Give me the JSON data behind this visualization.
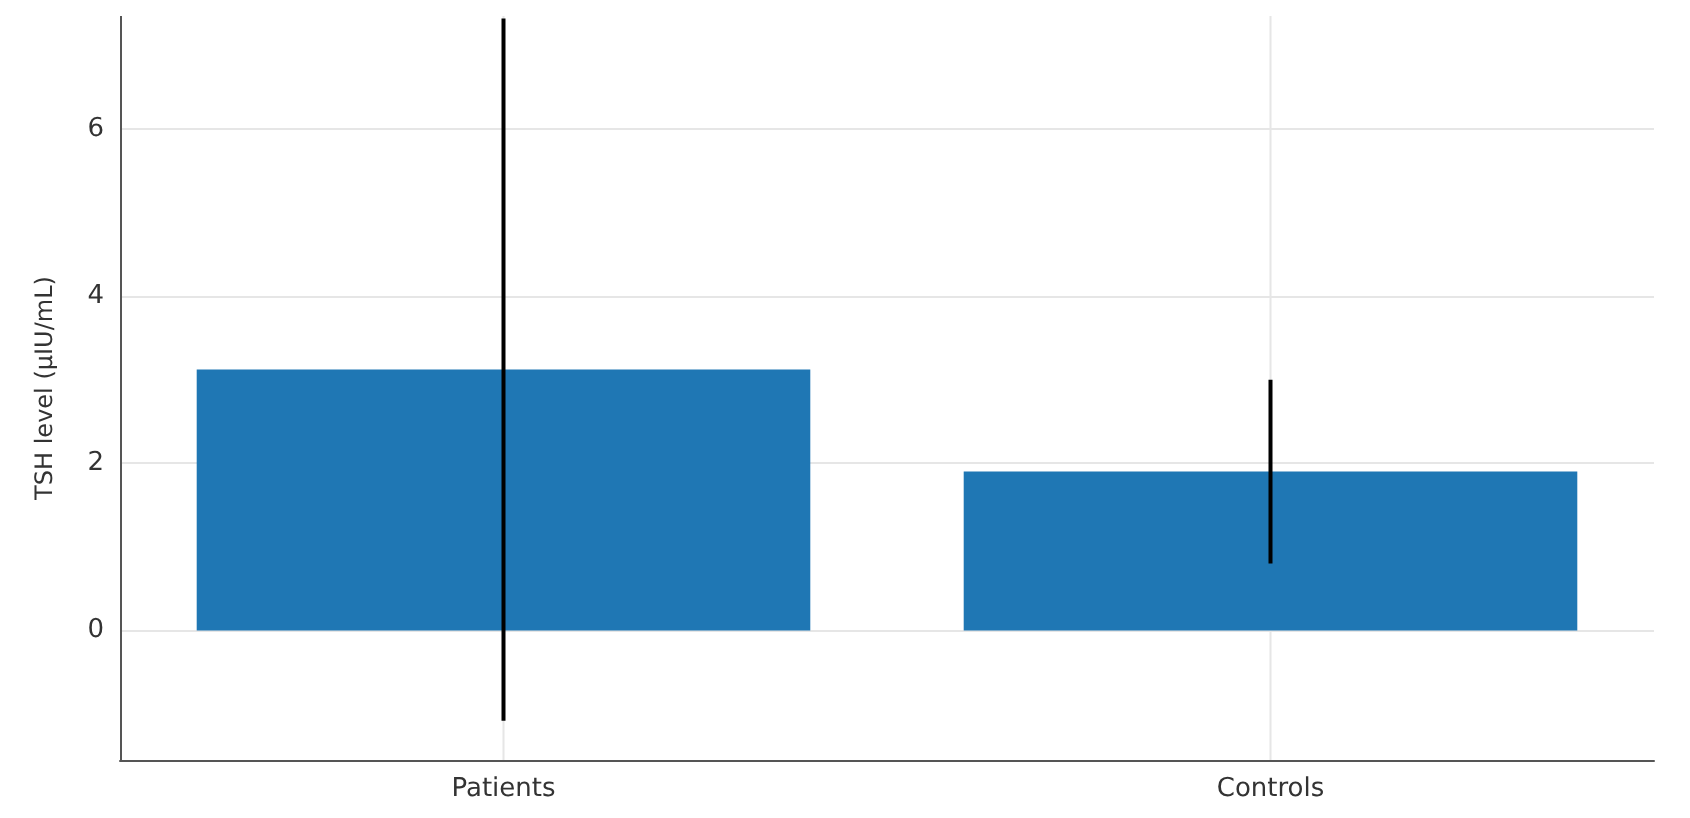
{
  "chart_data": {
    "type": "bar",
    "ylabel": "TSH level (μIU/mL)",
    "categories": [
      "Patients",
      "Controls"
    ],
    "values": [
      3.12,
      1.9
    ],
    "errors": [
      4.2,
      1.1
    ],
    "color": "#1f77b4",
    "ylim": [
      -1.55,
      7.35
    ],
    "yticks": [
      0,
      2,
      4,
      6
    ],
    "grid": true
  }
}
